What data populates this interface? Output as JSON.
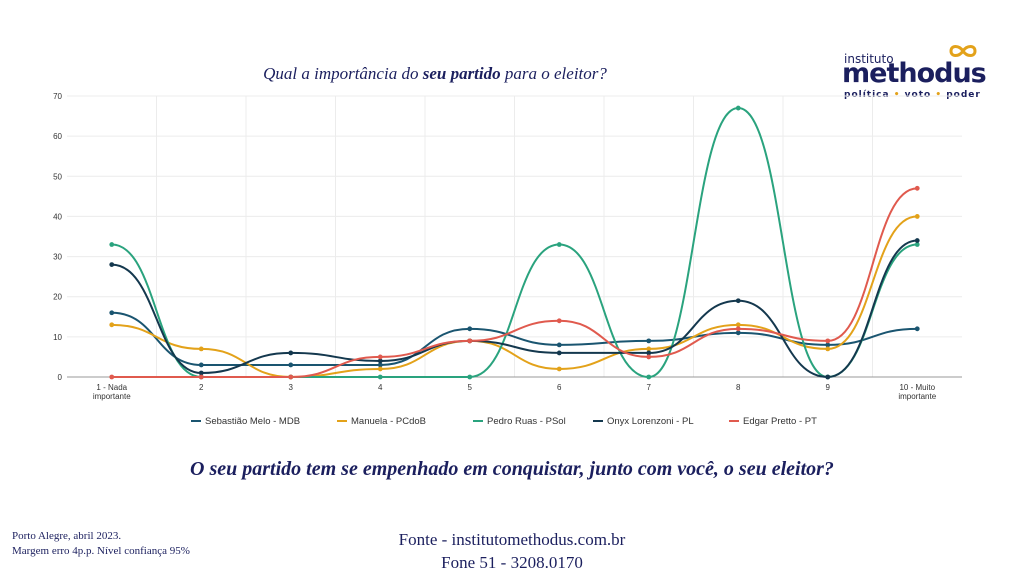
{
  "header": {
    "title_prefix": "Qual a importância do ",
    "title_bold": "seu partido",
    "title_suffix": " para o eleitor?"
  },
  "logo": {
    "small": "instituto",
    "big": "methodus",
    "tag1": "política",
    "tag2": "voto",
    "tag3": "poder",
    "sep": "•",
    "icon": "infinity-icon",
    "color": "#e3a21a"
  },
  "subtitle": "O seu partido tem se empenhado em conquistar, junto com você, o seu eleitor?",
  "footer": {
    "note1": "Porto Alegre, abril 2023.",
    "note2": "Margem erro 4p.p. Nível confiança 95%",
    "source1": "Fonte - institutomethodus.com.br",
    "source2": "Fone 51 - 3208.0170"
  },
  "chart_data": {
    "type": "line",
    "categories": [
      [
        "1 - Nada",
        "importante"
      ],
      [
        "2"
      ],
      [
        "3"
      ],
      [
        "4"
      ],
      [
        "5"
      ],
      [
        "6"
      ],
      [
        "7"
      ],
      [
        "8"
      ],
      [
        "9"
      ],
      [
        "10 - Muito",
        "importante"
      ]
    ],
    "ylim": [
      0,
      70
    ],
    "yticks": [
      "0",
      "10",
      "20",
      "30",
      "40",
      "50",
      "60",
      "70"
    ],
    "grid": true,
    "legend": "bottom",
    "series": [
      {
        "name": "Sebastião Melo - MDB",
        "color": "#1a5570",
        "values": [
          16,
          3,
          3,
          3,
          12,
          8,
          9,
          11,
          8,
          12
        ]
      },
      {
        "name": "Manuela - PCdoB",
        "color": "#e3a21a",
        "values": [
          13,
          7,
          0,
          2,
          9,
          2,
          7,
          13,
          7,
          40
        ]
      },
      {
        "name": "Pedro Ruas - PSol",
        "color": "#2aa37e",
        "values": [
          33,
          0,
          0,
          0,
          0,
          33,
          0,
          67,
          0,
          33
        ]
      },
      {
        "name": "Onyx Lorenzoni - PL",
        "color": "#14384e",
        "values": [
          28,
          1,
          6,
          4,
          9,
          6,
          6,
          19,
          0,
          34
        ]
      },
      {
        "name": "Edgar Pretto - PT",
        "color": "#e05a4e",
        "values": [
          0,
          0,
          0,
          5,
          9,
          14,
          5,
          12,
          9,
          47
        ]
      }
    ]
  }
}
